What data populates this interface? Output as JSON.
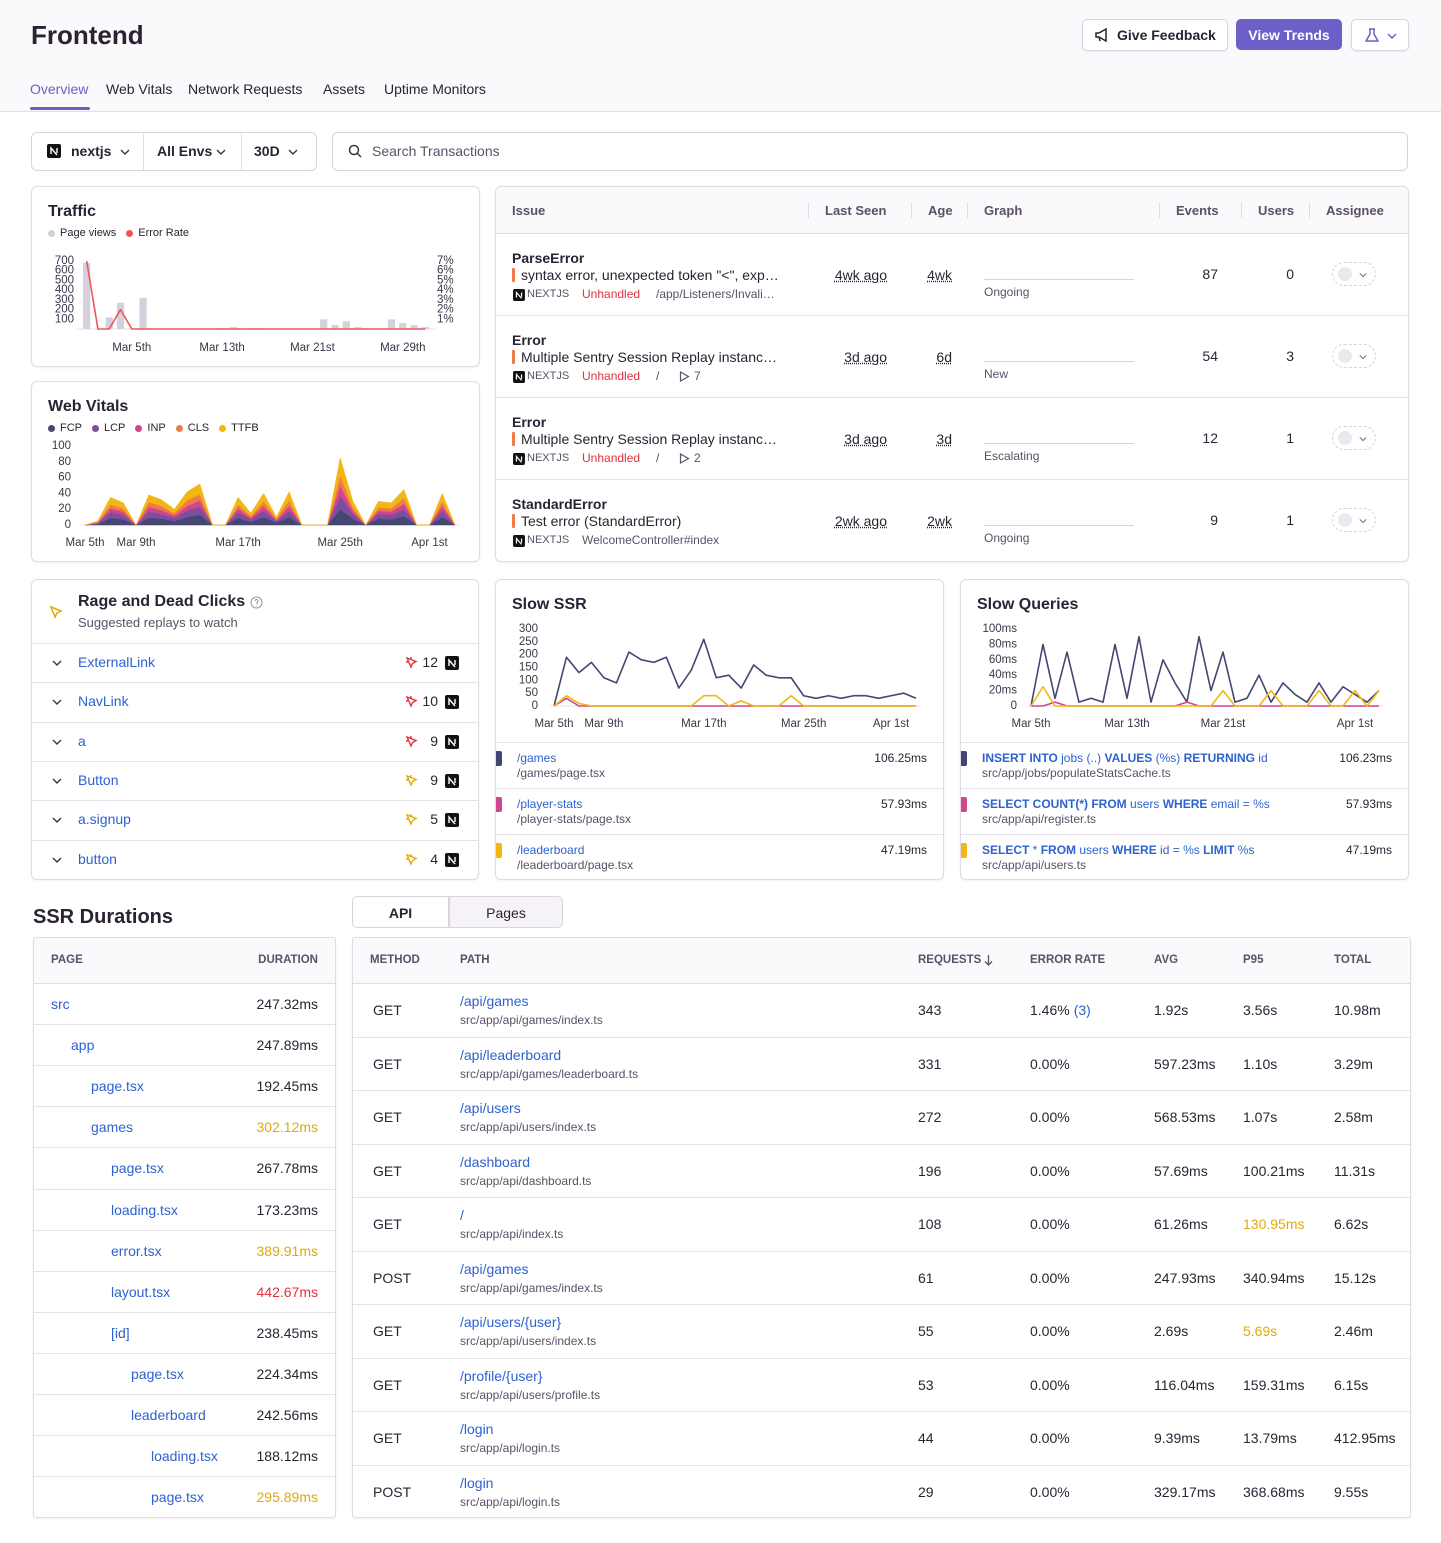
{
  "header": {
    "title": "Frontend",
    "buttons": [
      "Give Feedback",
      "View Trends"
    ],
    "tabs": [
      "Overview",
      "Web Vitals",
      "Network Requests",
      "Assets",
      "Uptime Monitors"
    ],
    "active_tab": 0
  },
  "filters": {
    "project": "nextjs",
    "environment": "All Envs",
    "period": "30D",
    "search_placeholder": "Search Transactions"
  },
  "traffic": {
    "type": "bar",
    "title": "Traffic",
    "categories": [
      null,
      null,
      null,
      null,
      "Mar 5th",
      null,
      null,
      null,
      null,
      null,
      null,
      null,
      "Mar 13th",
      null,
      null,
      null,
      null,
      null,
      null,
      null,
      "Mar 21st",
      null,
      null,
      null,
      null,
      null,
      null,
      null,
      "Mar 29th",
      null,
      null
    ],
    "series": [
      {
        "name": "Page views",
        "color": "#d5d0dc",
        "values": [
          680,
          0,
          120,
          270,
          0,
          320,
          0,
          0,
          0,
          0,
          0,
          0,
          10,
          20,
          0,
          10,
          0,
          0,
          0,
          0,
          0,
          100,
          40,
          80,
          20,
          0,
          0,
          100,
          60,
          40,
          20
        ]
      },
      {
        "name": "Error Rate",
        "color": "#f0545a",
        "type": "line",
        "axis": "y2",
        "values": [
          7,
          0,
          0,
          2,
          0,
          0,
          0,
          0,
          0,
          0,
          0,
          0,
          0,
          0,
          0,
          0,
          0,
          0,
          0,
          0,
          0,
          0,
          0,
          0,
          0,
          0,
          0,
          0,
          0,
          0,
          0
        ]
      }
    ],
    "ylim": [
      0,
      700
    ],
    "yticks": [
      100,
      200,
      300,
      400,
      500,
      600,
      700
    ],
    "y2lim": [
      0,
      7
    ],
    "y2ticks": [
      {
        "value": 1,
        "label": "1%"
      },
      {
        "value": 2,
        "label": "2%"
      },
      {
        "value": 3,
        "label": "3%"
      },
      {
        "value": 4,
        "label": "4%"
      },
      {
        "value": 5,
        "label": "5%"
      },
      {
        "value": 6,
        "label": "6%"
      },
      {
        "value": 7,
        "label": "7%"
      }
    ]
  },
  "web_vitals": {
    "type": "area",
    "stacked": true,
    "title": "Web Vitals",
    "categories": [
      "Mar 5th",
      null,
      null,
      null,
      "Mar 9th",
      null,
      null,
      null,
      null,
      null,
      null,
      null,
      "Mar 17th",
      null,
      null,
      null,
      null,
      null,
      null,
      null,
      "Mar 25th",
      null,
      null,
      null,
      null,
      null,
      null,
      "Apr 1st",
      null,
      null
    ],
    "series": [
      {
        "name": "FCP",
        "color": "#444674",
        "values": [
          0,
          1,
          9,
          7,
          0,
          9,
          8,
          5,
          10,
          13,
          0,
          0,
          9,
          4,
          10,
          3,
          10,
          0,
          0,
          0,
          20,
          8,
          0,
          8,
          7,
          11,
          0,
          0,
          10,
          0
        ]
      },
      {
        "name": "LCP",
        "color": "#7a4f9e",
        "values": [
          0,
          1,
          7,
          6,
          0,
          8,
          6,
          4,
          8,
          10,
          0,
          0,
          7,
          3,
          8,
          2,
          8,
          0,
          0,
          0,
          17,
          6,
          0,
          6,
          6,
          9,
          0,
          0,
          8,
          0
        ]
      },
      {
        "name": "INP",
        "color": "#d0458b",
        "values": [
          0,
          1,
          5,
          4,
          0,
          6,
          5,
          3,
          6,
          8,
          0,
          0,
          5,
          2,
          6,
          1,
          6,
          0,
          0,
          0,
          13,
          4,
          0,
          4,
          4,
          7,
          0,
          0,
          6,
          0
        ]
      },
      {
        "name": "CLS",
        "color": "#f07a4a",
        "values": [
          0,
          1,
          5,
          4,
          0,
          6,
          5,
          3,
          7,
          8,
          0,
          0,
          5,
          2,
          6,
          2,
          7,
          0,
          0,
          0,
          13,
          4,
          0,
          4,
          4,
          7,
          0,
          0,
          6,
          0
        ]
      },
      {
        "name": "TTFB",
        "color": "#f2b712",
        "values": [
          0,
          1,
          9,
          7,
          0,
          9,
          8,
          5,
          11,
          13,
          0,
          0,
          9,
          4,
          10,
          2,
          11,
          0,
          0,
          0,
          22,
          8,
          0,
          8,
          7,
          11,
          0,
          0,
          10,
          0
        ]
      }
    ],
    "ylim": [
      0,
      100
    ],
    "yticks": [
      0,
      20,
      40,
      60,
      80,
      100
    ]
  },
  "issues": {
    "columns": [
      "Issue",
      "Last Seen",
      "Age",
      "Graph",
      "Events",
      "Users",
      "Assignee"
    ],
    "rows": [
      {
        "type": "ParseError",
        "message": "syntax error, unexpected token \"<\", exp…",
        "platform": "NEXTJS",
        "handled": "Unhandled",
        "culprit": "/app/Listeners/Invali…",
        "last_seen": "4wk ago",
        "age": "4wk",
        "status": "Ongoing",
        "events": 87,
        "users": 0
      },
      {
        "type": "Error",
        "message": "Multiple Sentry Session Replay instanc…",
        "platform": "NEXTJS",
        "handled": "Unhandled",
        "culprit": "/",
        "replays": 7,
        "last_seen": "3d ago",
        "age": "6d",
        "status": "New",
        "events": 54,
        "users": 3
      },
      {
        "type": "Error",
        "message": "Multiple Sentry Session Replay instanc…",
        "platform": "NEXTJS",
        "handled": "Unhandled",
        "culprit": "/",
        "replays": 2,
        "last_seen": "3d ago",
        "age": "3d",
        "status": "Escalating",
        "events": 12,
        "users": 1
      },
      {
        "type": "StandardError",
        "message": "Test error (StandardError)",
        "platform": "NEXTJS",
        "culprit": "WelcomeController#index",
        "last_seen": "2wk ago",
        "age": "2wk",
        "status": "Ongoing",
        "events": 9,
        "users": 1
      }
    ]
  },
  "rage_clicks": {
    "title": "Rage and Dead Clicks",
    "subtitle": "Suggested replays to watch",
    "items": [
      {
        "selector": "ExternalLink",
        "count": 12,
        "color": "#e0323d"
      },
      {
        "selector": "NavLink",
        "count": 10,
        "color": "#e0323d"
      },
      {
        "selector": "a",
        "count": 9,
        "color": "#e0323d"
      },
      {
        "selector": "Button",
        "count": 9,
        "color": "#e0a810"
      },
      {
        "selector": "a.signup",
        "count": 5,
        "color": "#e0a810"
      },
      {
        "selector": "button",
        "count": 4,
        "color": "#e0a810"
      }
    ]
  },
  "slow_ssr": {
    "type": "line",
    "title": "Slow SSR",
    "categories": [
      "Mar 5th",
      null,
      null,
      null,
      "Mar 9th",
      null,
      null,
      null,
      null,
      null,
      null,
      null,
      "Mar 17th",
      null,
      null,
      null,
      null,
      null,
      null,
      null,
      "Mar 25th",
      null,
      null,
      null,
      null,
      null,
      null,
      "Apr 1st",
      null,
      null
    ],
    "series": [
      {
        "name": "/games",
        "file": "/games/page.tsx",
        "duration": "106.25ms",
        "color": "#444674",
        "values": [
          0,
          190,
          130,
          170,
          110,
          90,
          210,
          180,
          170,
          190,
          70,
          140,
          260,
          110,
          120,
          70,
          160,
          120,
          110,
          110,
          40,
          30,
          40,
          30,
          40,
          40,
          30,
          40,
          50,
          30
        ]
      },
      {
        "name": "/player-stats",
        "file": "/player-stats/page.tsx",
        "duration": "57.93ms",
        "color": "#d0458b",
        "values": [
          0,
          30,
          0,
          0,
          0,
          0,
          0,
          0,
          0,
          0,
          0,
          0,
          0,
          0,
          0,
          0,
          0,
          0,
          0,
          0,
          0,
          0,
          0,
          0,
          0,
          0,
          0,
          0,
          0,
          0
        ]
      },
      {
        "name": "/leaderboard",
        "file": "/leaderboard/page.tsx",
        "duration": "47.19ms",
        "color": "#f2b712",
        "values": [
          0,
          40,
          10,
          0,
          0,
          0,
          0,
          0,
          0,
          0,
          0,
          0,
          40,
          40,
          0,
          20,
          0,
          0,
          0,
          40,
          0,
          0,
          0,
          0,
          0,
          0,
          0,
          0,
          0,
          0
        ]
      }
    ],
    "ylim": [
      0,
      300
    ],
    "yticks": [
      0,
      50,
      100,
      150,
      200,
      250,
      300
    ]
  },
  "slow_queries": {
    "type": "line",
    "title": "Slow Queries",
    "categories": [
      "Mar 5th",
      null,
      null,
      null,
      null,
      null,
      null,
      null,
      "Mar 13th",
      null,
      null,
      null,
      null,
      null,
      null,
      null,
      "Mar 21st",
      null,
      null,
      null,
      null,
      null,
      null,
      null,
      null,
      null,
      null,
      "Apr 1st",
      null,
      null
    ],
    "series": [
      {
        "name": "INSERT INTO jobs (..) VALUES (%s) RETURNING id",
        "file": "src/app/jobs/populateStatsCache.ts",
        "duration": "106.23ms",
        "color": "#444674",
        "values": [
          0,
          80,
          10,
          70,
          5,
          10,
          5,
          80,
          10,
          90,
          5,
          60,
          30,
          5,
          90,
          20,
          70,
          5,
          10,
          40,
          5,
          30,
          15,
          5,
          30,
          5,
          25,
          15,
          5,
          20
        ]
      },
      {
        "name": "SELECT COUNT(*) FROM users WHERE email = %s",
        "file": "src/app/api/register.ts",
        "duration": "57.93ms",
        "color": "#d0458b",
        "values": [
          0,
          0,
          5,
          0,
          0,
          0,
          0,
          0,
          0,
          0,
          0,
          0,
          0,
          5,
          0,
          0,
          0,
          0,
          0,
          0,
          0,
          0,
          0,
          0,
          0,
          0,
          0,
          0,
          0,
          0
        ]
      },
      {
        "name": "SELECT * FROM users WHERE id = %s LIMIT %s",
        "file": "src/app/api/users.ts",
        "duration": "47.19ms",
        "color": "#f2b712",
        "values": [
          0,
          25,
          0,
          0,
          0,
          0,
          0,
          0,
          0,
          0,
          0,
          0,
          0,
          0,
          0,
          0,
          20,
          0,
          0,
          0,
          20,
          0,
          0,
          0,
          20,
          0,
          0,
          20,
          0,
          20
        ]
      }
    ],
    "ylim": [
      0,
      100
    ],
    "yticks": [
      0,
      {
        "value": 20,
        "label": "20ms"
      },
      {
        "value": 40,
        "label": "40ms"
      },
      {
        "value": 60,
        "label": "60ms"
      },
      {
        "value": 80,
        "label": "80ms"
      },
      {
        "value": 100,
        "label": "100ms"
      }
    ]
  },
  "ssr_durations": {
    "title": "SSR Durations",
    "columns": [
      "PAGE",
      "DURATION"
    ],
    "rows": [
      {
        "name": "src",
        "depth": 0,
        "duration": "247.32ms"
      },
      {
        "name": "app",
        "depth": 1,
        "duration": "247.89ms"
      },
      {
        "name": "page.tsx",
        "depth": 2,
        "duration": "192.45ms"
      },
      {
        "name": "games",
        "depth": 2,
        "duration": "302.12ms",
        "color": "#e0a810"
      },
      {
        "name": "page.tsx",
        "depth": 3,
        "duration": "267.78ms"
      },
      {
        "name": "loading.tsx",
        "depth": 3,
        "duration": "173.23ms"
      },
      {
        "name": "error.tsx",
        "depth": 3,
        "duration": "389.91ms",
        "color": "#e0a810"
      },
      {
        "name": "layout.tsx",
        "depth": 3,
        "duration": "442.67ms",
        "color": "#e0323d"
      },
      {
        "name": "[id]",
        "depth": 3,
        "duration": "238.45ms"
      },
      {
        "name": "page.tsx",
        "depth": 4,
        "duration": "224.34ms"
      },
      {
        "name": "leaderboard",
        "depth": 4,
        "duration": "242.56ms"
      },
      {
        "name": "loading.tsx",
        "depth": 5,
        "duration": "188.12ms"
      },
      {
        "name": "page.tsx",
        "depth": 5,
        "duration": "295.89ms",
        "color": "#e0a810"
      }
    ]
  },
  "api": {
    "segments": [
      "API",
      "Pages"
    ],
    "active_segment": 0,
    "columns": [
      "METHOD",
      "PATH",
      "REQUESTS",
      "ERROR RATE",
      "AVG",
      "P95",
      "TOTAL"
    ],
    "sort_column": 2,
    "rows": [
      {
        "method": "GET",
        "path": "/api/games",
        "file": "src/app/api/games/index.ts",
        "requests": 343,
        "error_rate": "1.46%",
        "errors": "(3)",
        "avg": "1.92s",
        "p95": "3.56s",
        "total": "10.98m"
      },
      {
        "method": "GET",
        "path": "/api/leaderboard",
        "file": "src/app/api/games/leaderboard.ts",
        "requests": 331,
        "error_rate": "0.00%",
        "avg": "597.23ms",
        "p95": "1.10s",
        "total": "3.29m"
      },
      {
        "method": "GET",
        "path": "/api/users",
        "file": "src/app/api/users/index.ts",
        "requests": 272,
        "error_rate": "0.00%",
        "avg": "568.53ms",
        "p95": "1.07s",
        "total": "2.58m"
      },
      {
        "method": "GET",
        "path": "/dashboard",
        "file": "src/app/api/dashboard.ts",
        "requests": 196,
        "error_rate": "0.00%",
        "avg": "57.69ms",
        "p95": "100.21ms",
        "total": "11.31s"
      },
      {
        "method": "GET",
        "path": "/",
        "file": "src/app/api/index.ts",
        "requests": 108,
        "error_rate": "0.00%",
        "avg": "61.26ms",
        "p95": "130.95ms",
        "p95_color": "#e0a810",
        "total": "6.62s"
      },
      {
        "method": "POST",
        "path": "/api/games",
        "file": "src/app/api/games/index.ts",
        "requests": 61,
        "error_rate": "0.00%",
        "avg": "247.93ms",
        "p95": "340.94ms",
        "total": "15.12s"
      },
      {
        "method": "GET",
        "path": "/api/users/{user}",
        "file": "src/app/api/users/index.ts",
        "requests": 55,
        "error_rate": "0.00%",
        "avg": "2.69s",
        "p95": "5.69s",
        "p95_color": "#e0a810",
        "total": "2.46m"
      },
      {
        "method": "GET",
        "path": "/profile/{user}",
        "file": "src/app/api/users/profile.ts",
        "requests": 53,
        "error_rate": "0.00%",
        "avg": "116.04ms",
        "p95": "159.31ms",
        "total": "6.15s"
      },
      {
        "method": "GET",
        "path": "/login",
        "file": "src/app/api/login.ts",
        "requests": 44,
        "error_rate": "0.00%",
        "avg": "9.39ms",
        "p95": "13.79ms",
        "total": "412.95ms"
      },
      {
        "method": "POST",
        "path": "/login",
        "file": "src/app/api/login.ts",
        "requests": 29,
        "error_rate": "0.00%",
        "avg": "329.17ms",
        "p95": "368.68ms",
        "total": "9.55s"
      }
    ]
  }
}
